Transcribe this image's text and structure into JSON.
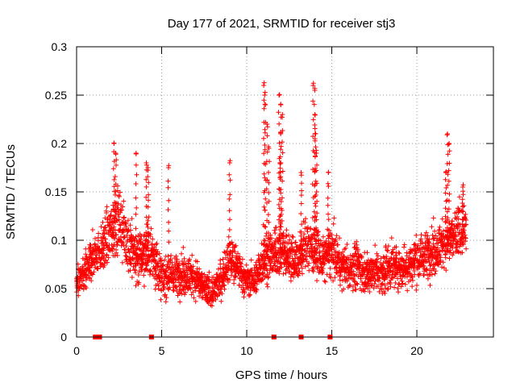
{
  "chart_data": {
    "type": "scatter",
    "title": "Day 177 of 2021, SRMTID for receiver stj3",
    "xlabel": "GPS time / hours",
    "ylabel": "SRMTID / TECUs",
    "xlim": [
      0,
      24.5
    ],
    "ylim": [
      0,
      0.3
    ],
    "xticks": [
      0,
      5,
      10,
      15,
      20
    ],
    "xtick_labels": [
      "0",
      "5",
      "10",
      "15",
      "20"
    ],
    "yticks": [
      0,
      0.05,
      0.1,
      0.15,
      0.2,
      0.25,
      0.3
    ],
    "ytick_labels": [
      "0",
      "0.05",
      "0.1",
      "0.15",
      "0.2",
      "0.25",
      "0.3"
    ],
    "grid": true,
    "marker_color": "#ff0000",
    "series": [
      {
        "name": "SRMTID",
        "marker": "plus",
        "description": "approximate trend of the point cloud (hour, center value, spread)",
        "envelope": [
          [
            0.0,
            0.055,
            0.02
          ],
          [
            0.5,
            0.065,
            0.025
          ],
          [
            1.0,
            0.085,
            0.03
          ],
          [
            1.5,
            0.09,
            0.03
          ],
          [
            2.0,
            0.11,
            0.04
          ],
          [
            2.5,
            0.12,
            0.04
          ],
          [
            3.0,
            0.1,
            0.04
          ],
          [
            3.5,
            0.08,
            0.035
          ],
          [
            4.0,
            0.09,
            0.04
          ],
          [
            4.5,
            0.085,
            0.035
          ],
          [
            5.0,
            0.06,
            0.025
          ],
          [
            5.5,
            0.065,
            0.025
          ],
          [
            6.0,
            0.065,
            0.025
          ],
          [
            6.5,
            0.065,
            0.025
          ],
          [
            7.0,
            0.06,
            0.025
          ],
          [
            7.5,
            0.05,
            0.02
          ],
          [
            8.0,
            0.045,
            0.02
          ],
          [
            8.5,
            0.06,
            0.025
          ],
          [
            9.0,
            0.08,
            0.03
          ],
          [
            9.5,
            0.07,
            0.025
          ],
          [
            10.0,
            0.058,
            0.02
          ],
          [
            10.5,
            0.06,
            0.02
          ],
          [
            11.0,
            0.08,
            0.03
          ],
          [
            11.5,
            0.085,
            0.03
          ],
          [
            12.0,
            0.09,
            0.035
          ],
          [
            12.5,
            0.085,
            0.03
          ],
          [
            13.0,
            0.08,
            0.03
          ],
          [
            13.5,
            0.095,
            0.035
          ],
          [
            14.0,
            0.09,
            0.035
          ],
          [
            14.5,
            0.08,
            0.03
          ],
          [
            15.0,
            0.09,
            0.035
          ],
          [
            15.5,
            0.075,
            0.03
          ],
          [
            16.0,
            0.07,
            0.025
          ],
          [
            16.5,
            0.075,
            0.03
          ],
          [
            17.0,
            0.065,
            0.025
          ],
          [
            17.5,
            0.07,
            0.025
          ],
          [
            18.0,
            0.065,
            0.025
          ],
          [
            18.5,
            0.075,
            0.03
          ],
          [
            19.0,
            0.07,
            0.025
          ],
          [
            19.5,
            0.075,
            0.03
          ],
          [
            20.0,
            0.08,
            0.03
          ],
          [
            20.5,
            0.085,
            0.03
          ],
          [
            21.0,
            0.09,
            0.03
          ],
          [
            21.5,
            0.095,
            0.03
          ],
          [
            22.0,
            0.1,
            0.03
          ],
          [
            22.5,
            0.11,
            0.035
          ],
          [
            22.9,
            0.11,
            0.035
          ]
        ],
        "peaks": [
          [
            2.2,
            0.2
          ],
          [
            2.3,
            0.19
          ],
          [
            3.5,
            0.19
          ],
          [
            4.1,
            0.18
          ],
          [
            4.2,
            0.175
          ],
          [
            5.4,
            0.175
          ],
          [
            9.0,
            0.18
          ],
          [
            11.0,
            0.26
          ],
          [
            11.05,
            0.25
          ],
          [
            11.1,
            0.24
          ],
          [
            11.2,
            0.22
          ],
          [
            11.3,
            0.195
          ],
          [
            11.9,
            0.25
          ],
          [
            12.0,
            0.24
          ],
          [
            12.1,
            0.23
          ],
          [
            12.0,
            0.21
          ],
          [
            11.95,
            0.18
          ],
          [
            13.2,
            0.17
          ],
          [
            13.9,
            0.26
          ],
          [
            14.0,
            0.255
          ],
          [
            14.0,
            0.23
          ],
          [
            14.05,
            0.21
          ],
          [
            14.1,
            0.19
          ],
          [
            14.8,
            0.17
          ],
          [
            21.8,
            0.21
          ],
          [
            21.9,
            0.2
          ],
          [
            21.7,
            0.17
          ],
          [
            22.7,
            0.155
          ]
        ]
      },
      {
        "name": "zero-valued points",
        "marker": "square",
        "x": [
          1.1,
          1.35,
          4.4,
          11.6,
          13.2,
          14.9
        ],
        "y": [
          0,
          0,
          0,
          0,
          0,
          0
        ]
      }
    ]
  }
}
